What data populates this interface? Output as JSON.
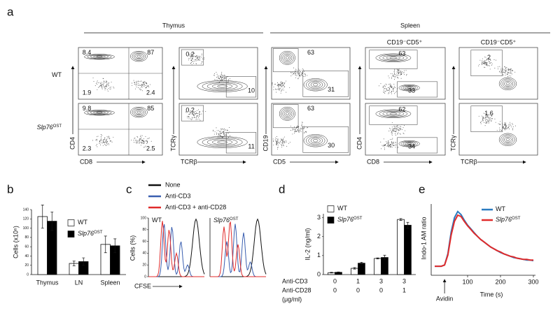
{
  "panel_labels": [
    "a",
    "b",
    "c",
    "d",
    "e"
  ],
  "panel_a": {
    "tissues": [
      "Thymus",
      "Spleen"
    ],
    "gate_headers": [
      "CD19⁻CD5⁺",
      "CD19⁻CD5⁺"
    ],
    "rows": [
      {
        "label": "WT"
      },
      {
        "label": "Slp76",
        "label_sup": "OST"
      }
    ],
    "plots": [
      {
        "y_axis": "CD4",
        "x_axis": "CD8",
        "gates": [
          [
            8.4,
            87,
            1.9,
            2.4
          ],
          [
            9.8,
            85,
            2.3,
            2.5
          ]
        ]
      },
      {
        "y_axis": "TCRγ",
        "x_axis": "TCRβ",
        "gates": [
          [
            0.2,
            10
          ],
          [
            0.2,
            11
          ]
        ]
      },
      {
        "y_axis": "CD19",
        "x_axis": "CD5",
        "gates": [
          [
            63,
            31
          ],
          [
            63,
            30
          ]
        ]
      },
      {
        "y_axis": "CD4",
        "x_axis": "CD8",
        "gates": [
          [
            63,
            33
          ],
          [
            62,
            34
          ]
        ]
      },
      {
        "y_axis": "TCRγ",
        "x_axis": "TCRβ",
        "gates": [
          [
            2
          ],
          [
            1.6
          ]
        ]
      }
    ]
  },
  "panel_c": {
    "legend": [
      {
        "name": "None",
        "color": "#111111"
      },
      {
        "name": "Anti-CD3",
        "color": "#3a5fb0"
      },
      {
        "name": "Anti-CD3 + anti-CD28",
        "color": "#e02b2b"
      }
    ],
    "y_label": "Cells (%)",
    "x_label": "CFSE",
    "ylim": [
      0,
      100
    ],
    "yticks": [
      0,
      20,
      40,
      60,
      80,
      100
    ],
    "plots": [
      {
        "label": "WT"
      },
      {
        "label": "Slp76",
        "label_sup": "OST"
      }
    ]
  },
  "chart_data": [
    {
      "type": "bar",
      "y_label": "Cells (x10⁶)",
      "categories": [
        "Thymus",
        "LN",
        "Spleen"
      ],
      "series": [
        {
          "name": "WT",
          "color": "#ffffff",
          "values": [
            125,
            24,
            65
          ],
          "errors": [
            25,
            5,
            18
          ]
        },
        {
          "name": "Slp76",
          "name_sup": "OST",
          "color": "#000000",
          "values": [
            115,
            28,
            62
          ],
          "errors": [
            20,
            8,
            15
          ]
        }
      ],
      "ylim": [
        0,
        140
      ],
      "yticks": [
        0,
        20,
        40,
        60,
        80,
        100,
        120,
        140
      ]
    },
    {
      "type": "bar",
      "y_label": "IL-2 (ng/ml)",
      "condition_rows": [
        {
          "label": "Anti-CD3",
          "values": [
            0,
            1,
            3,
            3
          ]
        },
        {
          "label": "Anti-CD28",
          "values": [
            0,
            0,
            0,
            1
          ]
        }
      ],
      "unit_label": "(μg/ml)",
      "series": [
        {
          "name": "WT",
          "color": "#ffffff",
          "values": [
            0.1,
            0.33,
            0.85,
            2.9
          ],
          "errors": [
            0.02,
            0.04,
            0.03,
            0.05
          ]
        },
        {
          "name": "Slp76",
          "name_sup": "OST",
          "color": "#000000",
          "values": [
            0.12,
            0.6,
            0.9,
            2.6
          ],
          "errors": [
            0.02,
            0.05,
            0.12,
            0.15
          ]
        }
      ],
      "ylim": [
        0,
        3.2
      ],
      "yticks": [
        0,
        1,
        2,
        3
      ]
    },
    {
      "type": "line",
      "y_label": "Indo-1 AM ratio",
      "x_label": "Time (s)",
      "annotation": "Avidin",
      "annotation_x": 30,
      "x": [
        0,
        10,
        20,
        30,
        40,
        50,
        60,
        70,
        80,
        90,
        100,
        110,
        120,
        130,
        140,
        150,
        160,
        170,
        180,
        190,
        200,
        210,
        220,
        230,
        240,
        250,
        260,
        270,
        280,
        290,
        300
      ],
      "series": [
        {
          "name": "WT",
          "color": "#2a7bc0",
          "values": [
            0.1,
            0.1,
            0.1,
            0.12,
            0.3,
            0.65,
            0.88,
            0.98,
            0.93,
            0.84,
            0.76,
            0.7,
            0.64,
            0.58,
            0.53,
            0.49,
            0.45,
            0.41,
            0.38,
            0.35,
            0.32,
            0.3,
            0.28,
            0.26,
            0.24,
            0.23,
            0.22,
            0.21,
            0.2,
            0.2,
            0.19
          ]
        },
        {
          "name": "Slp76",
          "name_sup": "OST",
          "color": "#e02b2b",
          "values": [
            0.1,
            0.1,
            0.1,
            0.12,
            0.28,
            0.6,
            0.82,
            0.92,
            0.9,
            0.82,
            0.75,
            0.69,
            0.63,
            0.58,
            0.53,
            0.49,
            0.45,
            0.41,
            0.38,
            0.35,
            0.33,
            0.3,
            0.28,
            0.26,
            0.25,
            0.23,
            0.22,
            0.21,
            0.21,
            0.2,
            0.2
          ]
        }
      ],
      "xlim": [
        0,
        300
      ],
      "xticks": [
        100,
        200,
        300
      ],
      "ylim": [
        0,
        1.1
      ]
    }
  ]
}
